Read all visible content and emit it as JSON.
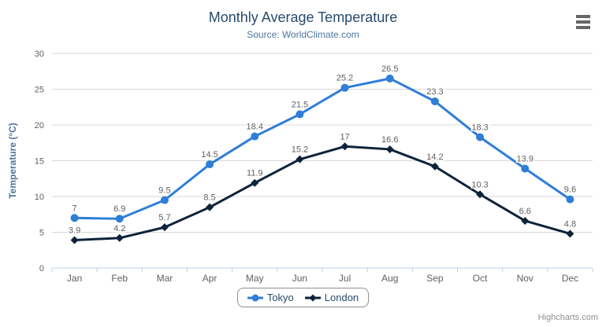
{
  "title": "Monthly Average Temperature",
  "subtitle": "Source: WorldClimate.com",
  "credits": "Highcharts.com",
  "menu_icon": "hamburger-export-menu",
  "chart_data": {
    "type": "line",
    "title": "Monthly Average Temperature",
    "subtitle": "Source: WorldClimate.com",
    "categories": [
      "Jan",
      "Feb",
      "Mar",
      "Apr",
      "May",
      "Jun",
      "Jul",
      "Aug",
      "Sep",
      "Oct",
      "Nov",
      "Dec"
    ],
    "series": [
      {
        "name": "Tokyo",
        "color": "#2f7ed8",
        "marker": "circle",
        "values": [
          7,
          6.9,
          9.5,
          14.5,
          18.4,
          21.5,
          25.2,
          26.5,
          23.3,
          18.3,
          13.9,
          9.6
        ]
      },
      {
        "name": "London",
        "color": "#0d233a",
        "marker": "diamond",
        "values": [
          3.9,
          4.2,
          5.7,
          8.5,
          11.9,
          15.2,
          17,
          16.6,
          14.2,
          10.3,
          6.6,
          4.8
        ]
      }
    ],
    "xlabel": "",
    "ylabel": "Temperature (°C)",
    "ylim": [
      0,
      30
    ],
    "yticks": [
      0,
      5,
      10,
      15,
      20,
      25,
      30
    ],
    "grid": true,
    "data_labels": true,
    "legend_position": "bottom-center"
  },
  "colors": {
    "title": "#274b6d",
    "subtitle": "#4d759e",
    "axis_title": "#4d759e",
    "tick_label": "#606060",
    "data_label": "#606060",
    "gridline": "#d8d8d8",
    "axis_line": "#c0d0e0",
    "legend_border": "#909090",
    "legend_text": "#274b6d",
    "credits_text": "#909090",
    "menu_icon": "#666666"
  }
}
